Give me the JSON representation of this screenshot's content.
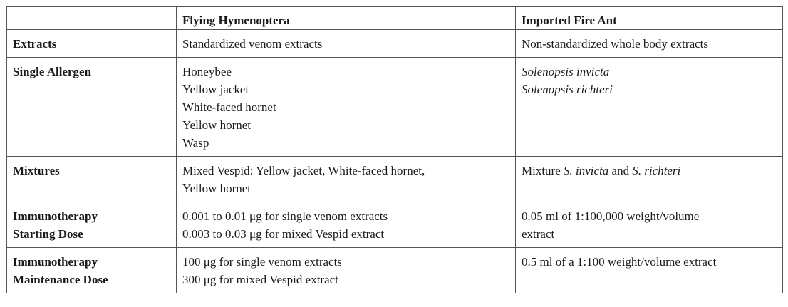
{
  "header": {
    "corner": "",
    "col1": "Flying Hymenoptera",
    "col2": "Imported Fire Ant"
  },
  "rows": {
    "extracts": {
      "label": "Extracts",
      "hymenoptera": "Standardized venom extracts",
      "fire_ant": "Non-standardized whole body extracts"
    },
    "single_allergen": {
      "label": "Single Allergen",
      "hymenoptera": [
        "Honeybee",
        "Yellow jacket",
        "White-faced hornet",
        "Yellow hornet",
        "Wasp"
      ],
      "fire_ant": [
        "Solenopsis invicta",
        "Solenopsis richteri"
      ]
    },
    "mixtures": {
      "label": "Mixtures",
      "hymenoptera": [
        "Mixed Vespid: Yellow jacket, White-faced hornet,",
        "Yellow hornet"
      ],
      "fire_ant": {
        "prefix": "Mixture ",
        "species1": "S. invicta",
        "conj": " and ",
        "species2": "S. richteri"
      }
    },
    "starting_dose": {
      "label_line1": "Immunotherapy",
      "label_line2": "Starting Dose",
      "hymenoptera": [
        "0.001 to 0.01 μg for single venom extracts",
        "0.003 to 0.03 μg for mixed Vespid extract"
      ],
      "fire_ant": [
        "0.05 ml of 1:100,000 weight/volume",
        "extract"
      ]
    },
    "maintenance_dose": {
      "label_line1": "Immunotherapy",
      "label_line2": "Maintenance Dose",
      "hymenoptera": [
        "100 μg for single venom extracts",
        "300 μg for mixed Vespid extract"
      ],
      "fire_ant": [
        "0.5 ml of a 1:100 weight/volume extract"
      ]
    }
  }
}
